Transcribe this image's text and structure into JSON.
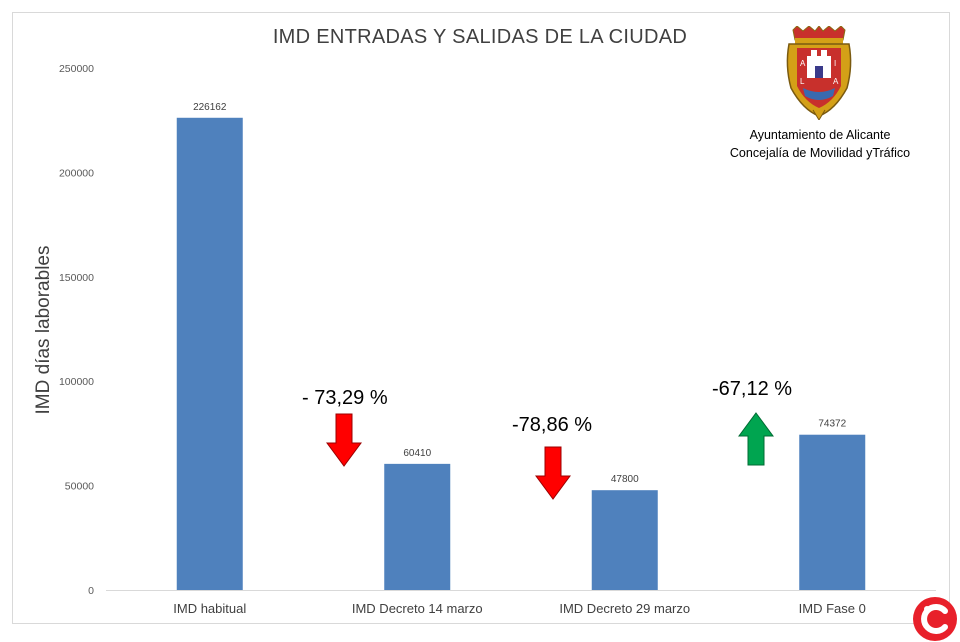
{
  "chart_data": {
    "type": "bar",
    "title": "IMD ENTRADAS Y SALIDAS DE LA CIUDAD",
    "ylabel": "IMD días laborables",
    "xlabel": "",
    "categories": [
      "IMD habitual",
      "IMD Decreto 14 marzo",
      "IMD Decreto 29 marzo",
      "IMD Fase 0"
    ],
    "values": [
      226162,
      60410,
      47800,
      74372
    ],
    "ylim": [
      0,
      250000
    ],
    "yticks": [
      0,
      50000,
      100000,
      150000,
      200000,
      250000
    ],
    "grid": false,
    "bar_color": "#4f81bd",
    "annotations": [
      {
        "text": "- 73,29 %",
        "arrow": "down",
        "color": "#ff0000"
      },
      {
        "text": "-78,86 %",
        "arrow": "down",
        "color": "#ff0000"
      },
      {
        "text": "-67,12 %",
        "arrow": "up",
        "color": "#00a550"
      }
    ]
  },
  "organization": {
    "line1": "Ayuntamiento de Alicante",
    "line2": "Concejalía de Movilidad yTráfico"
  },
  "colors": {
    "bar": "#4f81bd",
    "arrow_down": "#ff0000",
    "arrow_up": "#00a550",
    "badge": "#e8202a"
  }
}
